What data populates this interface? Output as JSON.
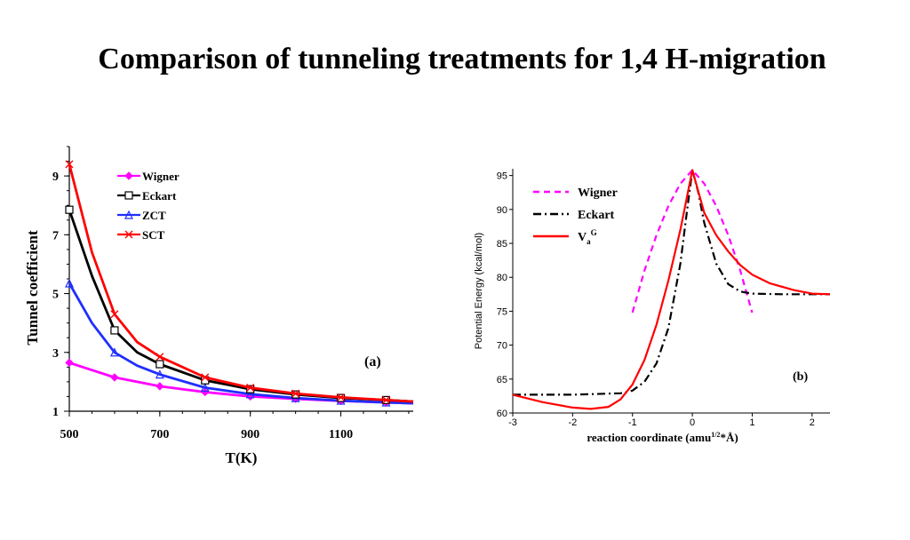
{
  "page": {
    "title": "Comparison of tunneling treatments for 1,4 H-migration"
  },
  "chart_data": [
    {
      "type": "line",
      "panel_label": "(a)",
      "xlabel": "T(K)",
      "ylabel": "Tunnel coefficient",
      "xlim": [
        500,
        1260
      ],
      "ylim": [
        1,
        10
      ],
      "x_ticks": [
        500,
        700,
        900,
        1100
      ],
      "y_ticks": [
        1,
        3,
        5,
        7,
        9
      ],
      "legend_position": "top-left",
      "series": [
        {
          "name": "Wigner",
          "color": "#ff00ff",
          "marker": "diamond",
          "x": [
            500,
            600,
            700,
            800,
            900,
            1000,
            1100,
            1200,
            1260
          ],
          "y": [
            2.65,
            2.15,
            1.85,
            1.65,
            1.5,
            1.42,
            1.35,
            1.3,
            1.27
          ]
        },
        {
          "name": "Eckart",
          "color": "#000000",
          "marker": "square",
          "x": [
            500,
            550,
            600,
            650,
            700,
            800,
            900,
            1000,
            1100,
            1200,
            1260
          ],
          "y": [
            7.85,
            5.6,
            3.75,
            3.0,
            2.6,
            2.05,
            1.75,
            1.57,
            1.45,
            1.38,
            1.33
          ]
        },
        {
          "name": "ZCT",
          "color": "#1f2fff",
          "marker": "triangle",
          "x": [
            500,
            550,
            600,
            650,
            700,
            800,
            900,
            1000,
            1100,
            1200,
            1260
          ],
          "y": [
            5.35,
            4.0,
            3.0,
            2.55,
            2.25,
            1.8,
            1.58,
            1.45,
            1.36,
            1.3,
            1.27
          ]
        },
        {
          "name": "SCT",
          "color": "#ff0000",
          "marker": "x",
          "x": [
            500,
            550,
            600,
            650,
            700,
            800,
            900,
            1000,
            1100,
            1200,
            1260
          ],
          "y": [
            9.4,
            6.4,
            4.3,
            3.35,
            2.85,
            2.15,
            1.8,
            1.6,
            1.47,
            1.38,
            1.33
          ]
        }
      ]
    },
    {
      "type": "line",
      "panel_label": "(b)",
      "xlabel": "reaction coordinate (amu",
      "xlabel_sup": "1/2",
      "xlabel_end": "*Å)",
      "ylabel": "Potential Energy (kcal/mol)",
      "xlim": [
        -3,
        2.3
      ],
      "ylim": [
        60,
        96
      ],
      "x_ticks": [
        -3,
        -2,
        -1,
        0,
        1,
        2
      ],
      "y_ticks": [
        60,
        65,
        70,
        75,
        80,
        85,
        90,
        95
      ],
      "legend_position": "top-left",
      "legend": [
        {
          "name": "Wigner",
          "color": "#ff00ff",
          "dash": "dashed"
        },
        {
          "name": "Eckart",
          "color": "#000000",
          "dash": "dash-dot"
        },
        {
          "name": "V",
          "sub": "a",
          "sup": "G",
          "color": "#ff0000",
          "dash": "solid"
        }
      ],
      "series": [
        {
          "name": "Wigner",
          "color": "#ff00ff",
          "dash": "dashed",
          "x": [
            -1.0,
            -0.8,
            -0.6,
            -0.4,
            -0.2,
            0.0,
            0.2,
            0.4,
            0.6,
            0.8,
            1.0
          ],
          "y": [
            74.8,
            81.0,
            86.2,
            90.5,
            93.8,
            95.8,
            93.8,
            90.5,
            86.2,
            81.0,
            74.8
          ]
        },
        {
          "name": "Eckart",
          "color": "#000000",
          "dash": "dash-dot",
          "x": [
            -3.0,
            -2.0,
            -1.2,
            -1.0,
            -0.8,
            -0.6,
            -0.4,
            -0.2,
            -0.1,
            0.0,
            0.1,
            0.2,
            0.4,
            0.6,
            0.8,
            1.0,
            1.5,
            2.3
          ],
          "y": [
            62.7,
            62.7,
            62.9,
            63.3,
            64.6,
            67.3,
            72.5,
            82.0,
            89.0,
            95.8,
            92.5,
            88.0,
            82.0,
            79.0,
            77.9,
            77.6,
            77.5,
            77.5
          ]
        },
        {
          "name": "V_a^G",
          "color": "#ff0000",
          "dash": "solid",
          "x": [
            -3.0,
            -2.5,
            -2.0,
            -1.7,
            -1.4,
            -1.2,
            -1.0,
            -0.8,
            -0.6,
            -0.4,
            -0.2,
            0.0,
            0.2,
            0.4,
            0.6,
            0.8,
            1.0,
            1.3,
            1.7,
            2.0,
            2.3
          ],
          "y": [
            62.7,
            61.6,
            60.8,
            60.6,
            60.9,
            62.0,
            64.2,
            67.8,
            73.0,
            79.5,
            87.0,
            95.8,
            89.5,
            86.2,
            83.8,
            81.8,
            80.4,
            79.1,
            78.1,
            77.6,
            77.5
          ]
        }
      ]
    }
  ]
}
